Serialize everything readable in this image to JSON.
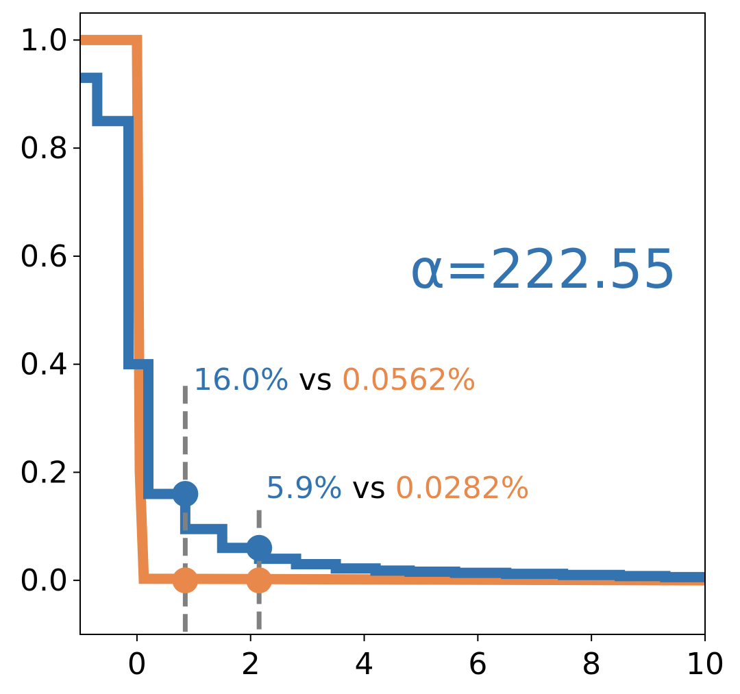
{
  "chart_data": {
    "type": "line",
    "step": true,
    "xlim": [
      -1,
      10
    ],
    "ylim": [
      -0.1,
      1.05
    ],
    "xticks": [
      0,
      2,
      4,
      6,
      8,
      10
    ],
    "yticks": [
      0.0,
      0.2,
      0.4,
      0.6,
      0.8,
      1.0
    ],
    "xtick_labels": [
      "0",
      "2",
      "4",
      "6",
      "8",
      "10"
    ],
    "ytick_labels": [
      "0.0",
      "0.2",
      "0.4",
      "0.6",
      "0.8",
      "1.0"
    ],
    "grid": false,
    "series": [
      {
        "color": "#e8884a",
        "points": [
          [
            -1,
            1.0
          ],
          [
            0.0,
            1.0
          ],
          [
            0.05,
            0.2
          ],
          [
            0.12,
            0.003
          ],
          [
            10,
            0.0
          ]
        ]
      },
      {
        "color": "#3373b0",
        "points": [
          [
            -1,
            0.93
          ],
          [
            -0.7,
            0.93
          ],
          [
            -0.7,
            0.85
          ],
          [
            -0.15,
            0.85
          ],
          [
            -0.15,
            0.4
          ],
          [
            0.2,
            0.4
          ],
          [
            0.2,
            0.16
          ],
          [
            0.85,
            0.16
          ],
          [
            0.85,
            0.095
          ],
          [
            1.5,
            0.095
          ],
          [
            1.5,
            0.06
          ],
          [
            2.15,
            0.06
          ],
          [
            2.15,
            0.04
          ],
          [
            2.8,
            0.04
          ],
          [
            2.8,
            0.03
          ],
          [
            3.5,
            0.03
          ],
          [
            3.5,
            0.022
          ],
          [
            4.2,
            0.022
          ],
          [
            4.2,
            0.018
          ],
          [
            4.8,
            0.018
          ],
          [
            4.8,
            0.016
          ],
          [
            5.6,
            0.016
          ],
          [
            5.6,
            0.014
          ],
          [
            6.5,
            0.014
          ],
          [
            6.5,
            0.012
          ],
          [
            7.5,
            0.012
          ],
          [
            7.5,
            0.01
          ],
          [
            8.5,
            0.01
          ],
          [
            8.5,
            0.008
          ],
          [
            9.3,
            0.008
          ],
          [
            9.3,
            0.006
          ],
          [
            10,
            0.006
          ]
        ]
      }
    ],
    "markers": [
      {
        "x": 0.85,
        "y": 0.16,
        "color": "#3373b0"
      },
      {
        "x": 2.15,
        "y": 0.06,
        "color": "#3373b0"
      },
      {
        "x": 0.85,
        "y": 0.0,
        "color": "#e8884a"
      },
      {
        "x": 2.15,
        "y": 0.0,
        "color": "#e8884a"
      }
    ],
    "vlines": [
      {
        "x": 0.85,
        "y_top": 0.36,
        "color": "#808080"
      },
      {
        "x": 2.15,
        "y_top": 0.13,
        "color": "#808080"
      }
    ],
    "annotations": [
      {
        "blue": "16.0%",
        "mid": " vs ",
        "orange": "0.0562%"
      },
      {
        "blue": "5.9%",
        "mid": " vs ",
        "orange": "0.0282%"
      }
    ],
    "alpha_text": "α=222.55",
    "colors": {
      "blue": "#3373b0",
      "orange": "#e8884a",
      "dash": "#808080",
      "text": "#000000"
    }
  }
}
